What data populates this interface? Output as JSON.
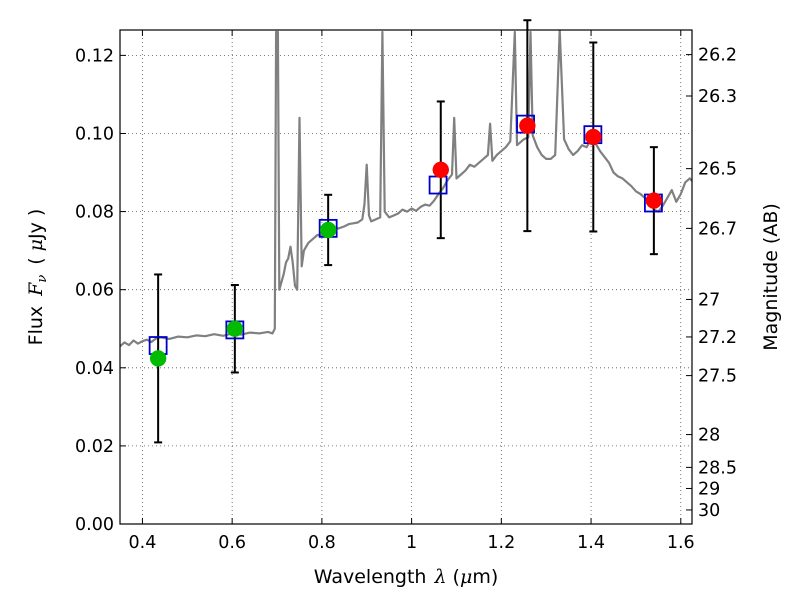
{
  "chart_data": {
    "type": "scatter",
    "xlabel_prefix": "Wavelength",
    "xlabel_symbol": "λ",
    "xlabel_unit_open": "(",
    "xlabel_unit_mu": "μ",
    "xlabel_unit_rest": "m)",
    "ylabel_prefix": "Flux",
    "ylabel_symbol": "F",
    "ylabel_subscript": "ν",
    "ylabel_unit_open": "(",
    "ylabel_unit_mu": "μ",
    "ylabel_unit_rest": "Jy )",
    "y2label": "Magnitude (AB)",
    "xlim": [
      0.35,
      1.625
    ],
    "ylim": [
      0.0,
      0.1265
    ],
    "x_ticks": [
      {
        "value": 0.4,
        "label": "0.4"
      },
      {
        "value": 0.6,
        "label": "0.6"
      },
      {
        "value": 0.8,
        "label": "0.8"
      },
      {
        "value": 1.0,
        "label": "1"
      },
      {
        "value": 1.2,
        "label": "1.2"
      },
      {
        "value": 1.4,
        "label": "1.4"
      },
      {
        "value": 1.6,
        "label": "1.6"
      }
    ],
    "y_ticks": [
      {
        "value": 0.0,
        "label": "0.00"
      },
      {
        "value": 0.02,
        "label": "0.02"
      },
      {
        "value": 0.04,
        "label": "0.04"
      },
      {
        "value": 0.06,
        "label": "0.06"
      },
      {
        "value": 0.08,
        "label": "0.08"
      },
      {
        "value": 0.1,
        "label": "0.10"
      },
      {
        "value": 0.12,
        "label": "0.12"
      }
    ],
    "y2_ticks": [
      {
        "flux": 0.1202,
        "label": "26.2"
      },
      {
        "flux": 0.1096,
        "label": "26.3"
      },
      {
        "flux": 0.091,
        "label": "26.5"
      },
      {
        "flux": 0.0757,
        "label": "26.7"
      },
      {
        "flux": 0.0575,
        "label": "27"
      },
      {
        "flux": 0.0479,
        "label": "27.2"
      },
      {
        "flux": 0.038,
        "label": "27.5"
      },
      {
        "flux": 0.0229,
        "label": "28"
      },
      {
        "flux": 0.0145,
        "label": "28.5"
      },
      {
        "flux": 0.0091,
        "label": "29"
      },
      {
        "flux": 0.0036,
        "label": "30"
      }
    ],
    "spectrum_color": "#808080",
    "spectrum": [
      [
        0.35,
        0.0455
      ],
      [
        0.36,
        0.0465
      ],
      [
        0.37,
        0.0458
      ],
      [
        0.38,
        0.047
      ],
      [
        0.39,
        0.0462
      ],
      [
        0.4,
        0.0468
      ],
      [
        0.41,
        0.0472
      ],
      [
        0.42,
        0.0466
      ],
      [
        0.43,
        0.0475
      ],
      [
        0.44,
        0.0478
      ],
      [
        0.46,
        0.0474
      ],
      [
        0.48,
        0.048
      ],
      [
        0.5,
        0.0478
      ],
      [
        0.52,
        0.0483
      ],
      [
        0.54,
        0.0481
      ],
      [
        0.56,
        0.0486
      ],
      [
        0.58,
        0.0482
      ],
      [
        0.6,
        0.0488
      ],
      [
        0.62,
        0.0485
      ],
      [
        0.64,
        0.049
      ],
      [
        0.66,
        0.0488
      ],
      [
        0.68,
        0.0492
      ],
      [
        0.69,
        0.0488
      ],
      [
        0.695,
        0.05
      ],
      [
        0.698,
        0.126
      ],
      [
        0.702,
        0.126
      ],
      [
        0.705,
        0.06
      ],
      [
        0.71,
        0.062
      ],
      [
        0.715,
        0.064
      ],
      [
        0.72,
        0.067
      ],
      [
        0.725,
        0.068
      ],
      [
        0.73,
        0.071
      ],
      [
        0.735,
        0.067
      ],
      [
        0.74,
        0.061
      ],
      [
        0.745,
        0.06
      ],
      [
        0.75,
        0.104
      ],
      [
        0.755,
        0.066
      ],
      [
        0.76,
        0.07
      ],
      [
        0.77,
        0.072
      ],
      [
        0.78,
        0.073
      ],
      [
        0.79,
        0.074
      ],
      [
        0.8,
        0.074
      ],
      [
        0.81,
        0.075
      ],
      [
        0.82,
        0.0752
      ],
      [
        0.83,
        0.0755
      ],
      [
        0.84,
        0.0758
      ],
      [
        0.85,
        0.0762
      ],
      [
        0.86,
        0.0768
      ],
      [
        0.87,
        0.077
      ],
      [
        0.88,
        0.0772
      ],
      [
        0.89,
        0.078
      ],
      [
        0.895,
        0.082
      ],
      [
        0.9,
        0.092
      ],
      [
        0.905,
        0.079
      ],
      [
        0.91,
        0.0775
      ],
      [
        0.92,
        0.078
      ],
      [
        0.93,
        0.0785
      ],
      [
        0.935,
        0.126
      ],
      [
        0.94,
        0.08
      ],
      [
        0.95,
        0.0785
      ],
      [
        0.96,
        0.079
      ],
      [
        0.97,
        0.0795
      ],
      [
        0.98,
        0.0805
      ],
      [
        0.99,
        0.08
      ],
      [
        1.0,
        0.0808
      ],
      [
        1.01,
        0.0802
      ],
      [
        1.02,
        0.0812
      ],
      [
        1.03,
        0.0818
      ],
      [
        1.04,
        0.0815
      ],
      [
        1.05,
        0.0828
      ],
      [
        1.06,
        0.0845
      ],
      [
        1.07,
        0.086
      ],
      [
        1.08,
        0.088
      ],
      [
        1.09,
        0.0895
      ],
      [
        1.095,
        0.104
      ],
      [
        1.1,
        0.0885
      ],
      [
        1.11,
        0.0895
      ],
      [
        1.12,
        0.0905
      ],
      [
        1.13,
        0.092
      ],
      [
        1.14,
        0.0915
      ],
      [
        1.15,
        0.0925
      ],
      [
        1.16,
        0.0935
      ],
      [
        1.17,
        0.0945
      ],
      [
        1.175,
        0.1025
      ],
      [
        1.18,
        0.093
      ],
      [
        1.19,
        0.0945
      ],
      [
        1.2,
        0.0955
      ],
      [
        1.21,
        0.0965
      ],
      [
        1.22,
        0.098
      ],
      [
        1.23,
        0.126
      ],
      [
        1.235,
        0.097
      ],
      [
        1.24,
        0.0975
      ],
      [
        1.25,
        0.0985
      ],
      [
        1.26,
        0.099
      ],
      [
        1.265,
        0.126
      ],
      [
        1.27,
        0.0995
      ],
      [
        1.28,
        0.0965
      ],
      [
        1.29,
        0.0945
      ],
      [
        1.3,
        0.0935
      ],
      [
        1.31,
        0.0935
      ],
      [
        1.32,
        0.0945
      ],
      [
        1.33,
        0.1265
      ],
      [
        1.34,
        0.0985
      ],
      [
        1.35,
        0.096
      ],
      [
        1.36,
        0.0945
      ],
      [
        1.37,
        0.0955
      ],
      [
        1.38,
        0.097
      ],
      [
        1.39,
        0.0965
      ],
      [
        1.4,
        0.0985
      ],
      [
        1.41,
        0.0975
      ],
      [
        1.42,
        0.0955
      ],
      [
        1.43,
        0.094
      ],
      [
        1.44,
        0.0925
      ],
      [
        1.45,
        0.09
      ],
      [
        1.46,
        0.089
      ],
      [
        1.47,
        0.0885
      ],
      [
        1.48,
        0.0875
      ],
      [
        1.49,
        0.0865
      ],
      [
        1.5,
        0.0852
      ],
      [
        1.51,
        0.0845
      ],
      [
        1.52,
        0.0835
      ],
      [
        1.53,
        0.0825
      ],
      [
        1.54,
        0.0805
      ],
      [
        1.55,
        0.08
      ],
      [
        1.56,
        0.0815
      ],
      [
        1.57,
        0.0835
      ],
      [
        1.58,
        0.0855
      ],
      [
        1.59,
        0.0825
      ],
      [
        1.6,
        0.0845
      ],
      [
        1.61,
        0.0875
      ],
      [
        1.62,
        0.0885
      ],
      [
        1.625,
        0.0878
      ]
    ],
    "model_points": [
      {
        "x": 0.435,
        "y": 0.0457
      },
      {
        "x": 0.606,
        "y": 0.0497
      },
      {
        "x": 0.814,
        "y": 0.0757
      },
      {
        "x": 1.059,
        "y": 0.0868
      },
      {
        "x": 1.254,
        "y": 0.1024
      },
      {
        "x": 1.404,
        "y": 0.0997
      },
      {
        "x": 1.539,
        "y": 0.0822
      }
    ],
    "model_color": "#0000cc",
    "observed_points": [
      {
        "x": 0.435,
        "y": 0.0424,
        "err": 0.0215,
        "color": "#00bb00"
      },
      {
        "x": 0.606,
        "y": 0.05,
        "err": 0.0112,
        "color": "#00bb00"
      },
      {
        "x": 0.814,
        "y": 0.0753,
        "err": 0.009,
        "color": "#00bb00"
      },
      {
        "x": 1.065,
        "y": 0.0907,
        "err": 0.0175,
        "color": "#ff0000"
      },
      {
        "x": 1.258,
        "y": 0.102,
        "err": 0.027,
        "color": "#ff0000"
      },
      {
        "x": 1.405,
        "y": 0.0991,
        "err": 0.0242,
        "color": "#ff0000"
      },
      {
        "x": 1.54,
        "y": 0.0828,
        "err": 0.0137,
        "color": "#ff0000"
      }
    ]
  }
}
